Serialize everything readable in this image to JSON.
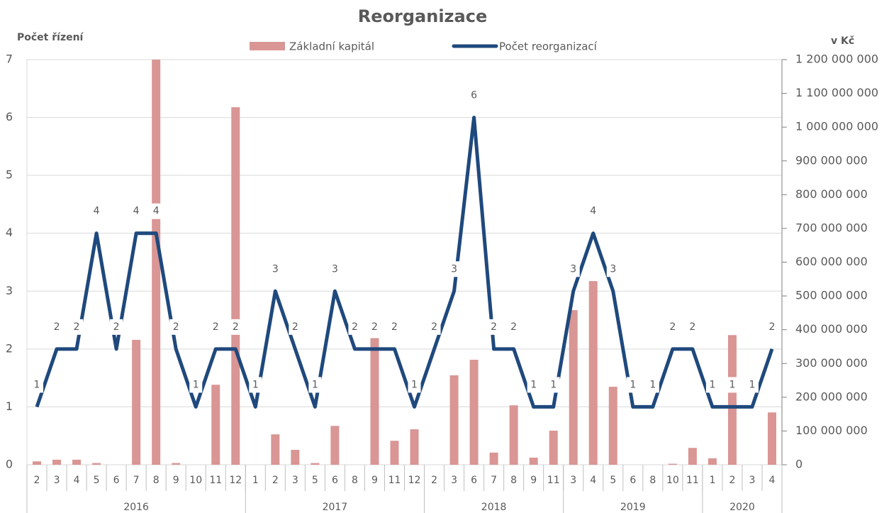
{
  "chart_data": {
    "type": "bar-line",
    "title": "Reorganizace",
    "y_label": "Počet řízení",
    "y2_label": "v Kč",
    "category_groups": [
      {
        "label": "2016",
        "categories": [
          "2",
          "3",
          "4",
          "5",
          "6",
          "7",
          "8",
          "9",
          "10",
          "11",
          "12"
        ]
      },
      {
        "label": "2017",
        "categories": [
          "1",
          "2",
          "3",
          "5",
          "6",
          "8",
          "9",
          "11",
          "12"
        ]
      },
      {
        "label": "2018",
        "categories": [
          "2",
          "3",
          "6",
          "7",
          "8",
          "9",
          "11"
        ]
      },
      {
        "label": "2019",
        "categories": [
          "3",
          "4",
          "5",
          "6",
          "8",
          "10",
          "11"
        ]
      },
      {
        "label": "2020",
        "categories": [
          "1",
          "2",
          "3",
          "4"
        ]
      }
    ],
    "series": [
      {
        "name": "Základní kapitál",
        "type": "bar",
        "axis": "y2",
        "color": "#d99694",
        "values": [
          10000000,
          15000000,
          15000000,
          5000000,
          0,
          370000000,
          1200000000,
          5000000,
          0,
          237000000,
          1059000000,
          0,
          90000000,
          44000000,
          5000000,
          115000000,
          0,
          375000000,
          71000000,
          105000000,
          0,
          265000000,
          311000000,
          36000000,
          176000000,
          21000000,
          101000000,
          458000000,
          544000000,
          231000000,
          0,
          0,
          3000000,
          50000000,
          19000000,
          384000000,
          0,
          155000000
        ]
      },
      {
        "name": "Počet reorganizací",
        "type": "line",
        "color": "#1f497d",
        "values": [
          1,
          2,
          2,
          4,
          2,
          4,
          4,
          2,
          1,
          2,
          2,
          1,
          3,
          2,
          1,
          3,
          2,
          2,
          2,
          1,
          2,
          3,
          6,
          2,
          2,
          1,
          1,
          3,
          4,
          3,
          1,
          1,
          2,
          2,
          1,
          1,
          1,
          2
        ]
      }
    ],
    "ylim": [
      0,
      7
    ],
    "yticks": [
      0,
      1,
      2,
      3,
      4,
      5,
      6,
      7
    ],
    "y2lim": [
      0,
      1200000000
    ],
    "y2ticks": [
      0,
      {
        "value": 100000000,
        "label": "100 000 000"
      },
      {
        "value": 200000000,
        "label": "200 000 000"
      },
      {
        "value": 300000000,
        "label": "300 000 000"
      },
      {
        "value": 400000000,
        "label": "400 000 000"
      },
      {
        "value": 500000000,
        "label": "500 000 000"
      },
      {
        "value": 600000000,
        "label": "600 000 000"
      },
      {
        "value": 700000000,
        "label": "700 000 000"
      },
      {
        "value": 800000000,
        "label": "800 000 000"
      },
      {
        "value": 900000000,
        "label": "900 000 000"
      },
      {
        "value": 1000000000,
        "label": "1 000 000 000"
      },
      {
        "value": 1100000000,
        "label": "1 100 000 000"
      },
      {
        "value": 1200000000,
        "label": "1 200 000 000"
      }
    ],
    "grid": true
  }
}
